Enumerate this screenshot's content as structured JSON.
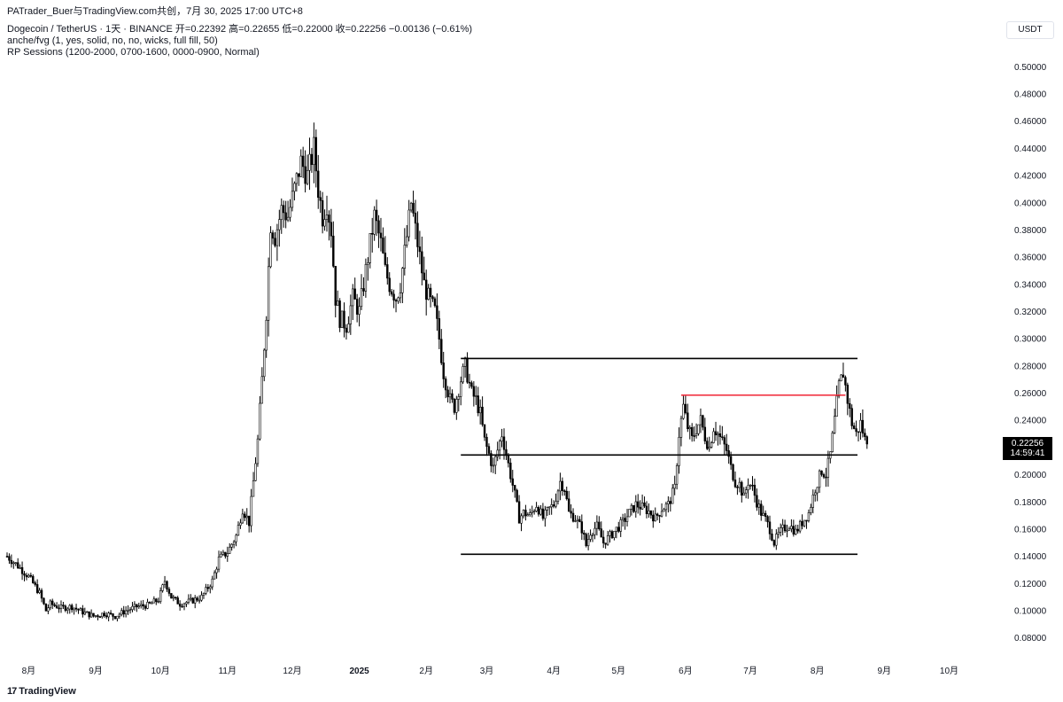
{
  "header": {
    "title_line": "PATrader_Buer与TradingView.com共创，7月 30, 2025 17:00 UTC+8",
    "symbol_line": "Dogecoin / TetherUS · 1天 · BINANCE  开=0.22392  高=0.22655  低=0.22000  收=0.22256  −0.00136 (−0.61%)",
    "indicator_1": "anche/fvg (1, yes, solid, no, no, wicks, full fill, 50)",
    "indicator_2": "RP Sessions (1200-2000, 0700-1600, 0000-0900, Normal)"
  },
  "currency": "USDT",
  "last_price": {
    "price": "0.22256",
    "countdown": "14:59:41",
    "value": 0.22256
  },
  "footer": {
    "brand": "TradingView",
    "logo_glyph": "17"
  },
  "chart_data": {
    "type": "candlestick",
    "ylim": [
      0.07,
      0.51
    ],
    "y_ticks": [
      "0.08000",
      "0.10000",
      "0.12000",
      "0.14000",
      "0.16000",
      "0.18000",
      "0.20000",
      "0.22000",
      "0.24000",
      "0.26000",
      "0.28000",
      "0.30000",
      "0.32000",
      "0.34000",
      "0.36000",
      "0.38000",
      "0.40000",
      "0.42000",
      "0.44000",
      "0.46000",
      "0.48000",
      "0.50000"
    ],
    "x_ticks": [
      {
        "label": "8月",
        "day": 0
      },
      {
        "label": "9月",
        "day": 31
      },
      {
        "label": "10月",
        "day": 61
      },
      {
        "label": "11月",
        "day": 92
      },
      {
        "label": "12月",
        "day": 122
      },
      {
        "label": "2025",
        "day": 153,
        "bold": true
      },
      {
        "label": "2月",
        "day": 184
      },
      {
        "label": "3月",
        "day": 212
      },
      {
        "label": "4月",
        "day": 243
      },
      {
        "label": "5月",
        "day": 273
      },
      {
        "label": "6月",
        "day": 304
      },
      {
        "label": "7月",
        "day": 334
      },
      {
        "label": "8月",
        "day": 365
      },
      {
        "label": "9月",
        "day": 396
      },
      {
        "label": "10月",
        "day": 426
      }
    ],
    "x_domain_days": [
      -10,
      450
    ],
    "close_path": [
      [
        -10,
        0.14
      ],
      [
        -5,
        0.133
      ],
      [
        0,
        0.125
      ],
      [
        5,
        0.113
      ],
      [
        8,
        0.1
      ],
      [
        10,
        0.105
      ],
      [
        15,
        0.102
      ],
      [
        20,
        0.103
      ],
      [
        25,
        0.099
      ],
      [
        30,
        0.096
      ],
      [
        35,
        0.098
      ],
      [
        40,
        0.096
      ],
      [
        45,
        0.1
      ],
      [
        50,
        0.103
      ],
      [
        55,
        0.104
      ],
      [
        60,
        0.108
      ],
      [
        63,
        0.122
      ],
      [
        66,
        0.11
      ],
      [
        70,
        0.105
      ],
      [
        75,
        0.107
      ],
      [
        80,
        0.11
      ],
      [
        85,
        0.122
      ],
      [
        88,
        0.138
      ],
      [
        92,
        0.143
      ],
      [
        96,
        0.155
      ],
      [
        99,
        0.175
      ],
      [
        102,
        0.165
      ],
      [
        104,
        0.195
      ],
      [
        106,
        0.225
      ],
      [
        108,
        0.27
      ],
      [
        110,
        0.32
      ],
      [
        112,
        0.385
      ],
      [
        114,
        0.375
      ],
      [
        117,
        0.395
      ],
      [
        120,
        0.39
      ],
      [
        123,
        0.41
      ],
      [
        126,
        0.43
      ],
      [
        129,
        0.42
      ],
      [
        132,
        0.44
      ],
      [
        134,
        0.41
      ],
      [
        136,
        0.39
      ],
      [
        138,
        0.4
      ],
      [
        140,
        0.38
      ],
      [
        142,
        0.33
      ],
      [
        144,
        0.315
      ],
      [
        147,
        0.31
      ],
      [
        150,
        0.33
      ],
      [
        153,
        0.32
      ],
      [
        155,
        0.34
      ],
      [
        158,
        0.37
      ],
      [
        160,
        0.39
      ],
      [
        163,
        0.37
      ],
      [
        165,
        0.35
      ],
      [
        167,
        0.34
      ],
      [
        170,
        0.33
      ],
      [
        172,
        0.34
      ],
      [
        175,
        0.375
      ],
      [
        177,
        0.4
      ],
      [
        179,
        0.38
      ],
      [
        181,
        0.36
      ],
      [
        183,
        0.34
      ],
      [
        185,
        0.33
      ],
      [
        188,
        0.32
      ],
      [
        190,
        0.3
      ],
      [
        192,
        0.275
      ],
      [
        195,
        0.255
      ],
      [
        197,
        0.25
      ],
      [
        200,
        0.27
      ],
      [
        202,
        0.28
      ],
      [
        205,
        0.26
      ],
      [
        207,
        0.255
      ],
      [
        209,
        0.245
      ],
      [
        211,
        0.225
      ],
      [
        213,
        0.215
      ],
      [
        215,
        0.205
      ],
      [
        217,
        0.218
      ],
      [
        219,
        0.23
      ],
      [
        221,
        0.215
      ],
      [
        223,
        0.2
      ],
      [
        225,
        0.185
      ],
      [
        227,
        0.168
      ],
      [
        229,
        0.172
      ],
      [
        232,
        0.17
      ],
      [
        235,
        0.178
      ],
      [
        238,
        0.168
      ],
      [
        241,
        0.175
      ],
      [
        243,
        0.178
      ],
      [
        246,
        0.195
      ],
      [
        248,
        0.19
      ],
      [
        250,
        0.172
      ],
      [
        253,
        0.168
      ],
      [
        256,
        0.16
      ],
      [
        258,
        0.148
      ],
      [
        260,
        0.158
      ],
      [
        263,
        0.162
      ],
      [
        266,
        0.15
      ],
      [
        269,
        0.155
      ],
      [
        272,
        0.16
      ],
      [
        275,
        0.165
      ],
      [
        278,
        0.172
      ],
      [
        281,
        0.178
      ],
      [
        284,
        0.176
      ],
      [
        287,
        0.173
      ],
      [
        290,
        0.168
      ],
      [
        293,
        0.175
      ],
      [
        296,
        0.178
      ],
      [
        299,
        0.19
      ],
      [
        301,
        0.23
      ],
      [
        303,
        0.25
      ],
      [
        305,
        0.235
      ],
      [
        307,
        0.226
      ],
      [
        309,
        0.234
      ],
      [
        311,
        0.24
      ],
      [
        313,
        0.228
      ],
      [
        315,
        0.22
      ],
      [
        317,
        0.235
      ],
      [
        319,
        0.23
      ],
      [
        321,
        0.224
      ],
      [
        323,
        0.218
      ],
      [
        325,
        0.205
      ],
      [
        327,
        0.195
      ],
      [
        329,
        0.193
      ],
      [
        331,
        0.183
      ],
      [
        333,
        0.195
      ],
      [
        335,
        0.19
      ],
      [
        337,
        0.18
      ],
      [
        339,
        0.172
      ],
      [
        341,
        0.167
      ],
      [
        343,
        0.16
      ],
      [
        345,
        0.15
      ],
      [
        347,
        0.156
      ],
      [
        349,
        0.16
      ],
      [
        352,
        0.163
      ],
      [
        355,
        0.158
      ],
      [
        358,
        0.165
      ],
      [
        361,
        0.172
      ],
      [
        364,
        0.19
      ],
      [
        367,
        0.203
      ],
      [
        369,
        0.2
      ],
      [
        371,
        0.215
      ],
      [
        373,
        0.24
      ],
      [
        375,
        0.265
      ],
      [
        377,
        0.275
      ],
      [
        379,
        0.255
      ],
      [
        381,
        0.238
      ],
      [
        383,
        0.23
      ],
      [
        385,
        0.238
      ],
      [
        387,
        0.226
      ],
      [
        388,
        0.223
      ]
    ],
    "last_day": 388,
    "horizontal_lines": [
      {
        "level": 0.2855,
        "x_start": 200,
        "x_end": 450,
        "color": "#000000"
      },
      {
        "level": 0.2145,
        "x_start": 200,
        "x_end": 450,
        "color": "#000000"
      },
      {
        "level": 0.1415,
        "x_start": 200,
        "x_end": 450,
        "color": "#000000"
      },
      {
        "level": 0.2585,
        "x_start": 302,
        "x_end": 378,
        "color": "#f23645"
      }
    ],
    "colors": {
      "candle": "#000000",
      "red_line": "#f23645",
      "grid": "none"
    },
    "grid": false
  }
}
